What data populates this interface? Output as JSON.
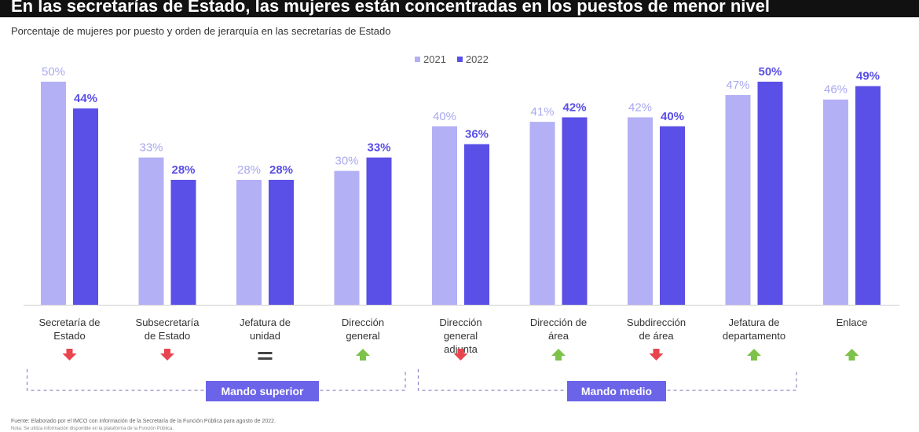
{
  "header": {
    "title": "En las secretarías de Estado, las mujeres están concentradas en los puestos de menor nivel",
    "subtitle": "Porcentaje de mujeres por puesto y orden de jerarquía en las secretarías de Estado"
  },
  "chart_data": {
    "type": "bar",
    "categories": [
      "Secretaría de Estado",
      "Subsecretaría de Estado",
      "Jefatura de unidad",
      "Dirección general",
      "Dirección general adjunta",
      "Dirección de área",
      "Subdirección de área",
      "Jefatura de departamento",
      "Enlace"
    ],
    "series": [
      {
        "name": "2021",
        "values": [
          50,
          33,
          28,
          30,
          40,
          41,
          42,
          47,
          46
        ],
        "color": "#b3b0f5"
      },
      {
        "name": "2022",
        "values": [
          44,
          28,
          28,
          33,
          36,
          42,
          40,
          50,
          49
        ],
        "color": "#5a4fe6"
      }
    ],
    "value_labels": {
      "2021": [
        "50%",
        "33%",
        "28%",
        "30%",
        "40%",
        "41%",
        "42%",
        "47%",
        "46%"
      ],
      "2022": [
        "44%",
        "28%",
        "28%",
        "33%",
        "36%",
        "42%",
        "40%",
        "50%",
        "49%"
      ]
    },
    "change_indicators": [
      "down",
      "down",
      "equal",
      "up",
      "down",
      "up",
      "down",
      "up",
      "up"
    ],
    "indicator_colors": {
      "up": "#7dc24a",
      "down": "#e8454e",
      "equal": "#444444"
    },
    "groups": [
      {
        "label": "Mando superior",
        "categories": [
          0,
          3
        ]
      },
      {
        "label": "Mando medio",
        "categories": [
          4,
          7
        ]
      }
    ],
    "ylim": [
      0,
      50
    ],
    "legend_position": "top",
    "grid": false
  },
  "footer": {
    "source": "Fuente: Elaborado por el IMCO con información de la Secretaría de la Función Pública para agosto de 2022.",
    "note": "Nota: Se utiliza información disponible en la plataforma de la Función Pública."
  }
}
